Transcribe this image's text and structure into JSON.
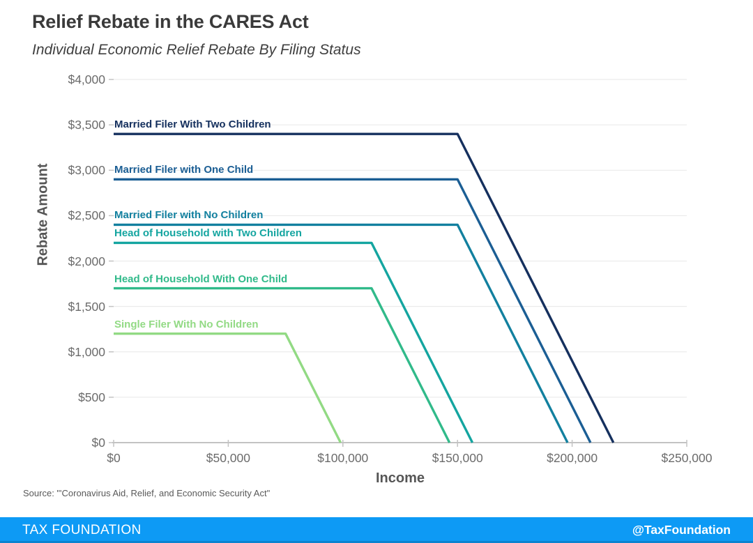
{
  "header": {
    "title": "Relief Rebate in the CARES Act",
    "subtitle": "Individual Economic Relief Rebate By Filing Status"
  },
  "chart_data": {
    "type": "line",
    "title": "Relief Rebate in the CARES Act",
    "subtitle": "Individual Economic Relief Rebate By Filing Status",
    "xlabel": "Income",
    "ylabel": "Rebate Amount",
    "xlim": [
      0,
      250000
    ],
    "ylim": [
      0,
      4000
    ],
    "grid": "horizontal",
    "legend_position": "inline-labels-above-lines",
    "x_ticks": [
      {
        "value": 0,
        "label": "$0"
      },
      {
        "value": 50000,
        "label": "$50,000"
      },
      {
        "value": 100000,
        "label": "$100,000"
      },
      {
        "value": 150000,
        "label": "$150,000"
      },
      {
        "value": 200000,
        "label": "$200,000"
      },
      {
        "value": 250000,
        "label": "$250,000"
      }
    ],
    "y_ticks": [
      {
        "value": 0,
        "label": "$0"
      },
      {
        "value": 500,
        "label": "$500"
      },
      {
        "value": 1000,
        "label": "$1,000"
      },
      {
        "value": 1500,
        "label": "$1,500"
      },
      {
        "value": 2000,
        "label": "$2,000"
      },
      {
        "value": 2500,
        "label": "$2,500"
      },
      {
        "value": 3000,
        "label": "$3,000"
      },
      {
        "value": 3500,
        "label": "$3,500"
      },
      {
        "value": 4000,
        "label": "$4,000"
      }
    ],
    "series": [
      {
        "name": "Married Filer With Two Children",
        "color": "#15305e",
        "max_rebate": 3400,
        "phaseout_start_income": 150000,
        "phaseout_end_income": 218000,
        "points": [
          [
            0,
            3400
          ],
          [
            150000,
            3400
          ],
          [
            218000,
            0
          ]
        ]
      },
      {
        "name": "Married Filer with One Child",
        "color": "#1b5e94",
        "max_rebate": 2900,
        "phaseout_start_income": 150000,
        "phaseout_end_income": 208000,
        "points": [
          [
            0,
            2900
          ],
          [
            150000,
            2900
          ],
          [
            208000,
            0
          ]
        ]
      },
      {
        "name": "Married Filer with No Children",
        "color": "#12809f",
        "max_rebate": 2400,
        "phaseout_start_income": 150000,
        "phaseout_end_income": 198000,
        "points": [
          [
            0,
            2400
          ],
          [
            150000,
            2400
          ],
          [
            198000,
            0
          ]
        ]
      },
      {
        "name": "Head of Household with Two Children",
        "color": "#14a5a0",
        "max_rebate": 2200,
        "phaseout_start_income": 112500,
        "phaseout_end_income": 156500,
        "points": [
          [
            0,
            2200
          ],
          [
            112500,
            2200
          ],
          [
            156500,
            0
          ]
        ]
      },
      {
        "name": "Head of Household With One Child",
        "color": "#31ba8a",
        "max_rebate": 1700,
        "phaseout_start_income": 112500,
        "phaseout_end_income": 146500,
        "points": [
          [
            0,
            1700
          ],
          [
            112500,
            1700
          ],
          [
            146500,
            0
          ]
        ]
      },
      {
        "name": "Single Filer With No Children",
        "color": "#92da84",
        "max_rebate": 1200,
        "phaseout_start_income": 75000,
        "phaseout_end_income": 99000,
        "points": [
          [
            0,
            1200
          ],
          [
            75000,
            1200
          ],
          [
            99000,
            0
          ]
        ]
      }
    ]
  },
  "source": "Source: \"'Coronavirus Aid, Relief, and Economic Security Act\"",
  "footer": {
    "brand": "TAX FOUNDATION",
    "handle": "@TaxFoundation",
    "bg_color": "#0d9af5"
  },
  "colors": {
    "grid": "#e7e7e7",
    "axis": "#c3c3c3",
    "tick_label": "#6b6b6b",
    "axis_title": "#565656",
    "title": "#3a3a3a"
  }
}
